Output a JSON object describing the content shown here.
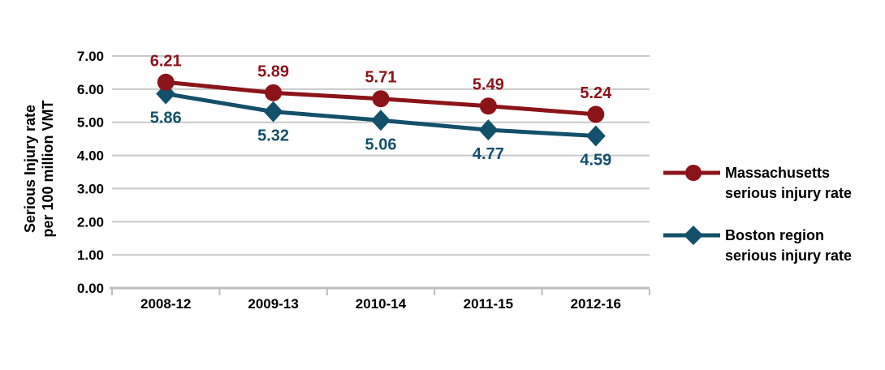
{
  "chart_data": {
    "type": "line",
    "title": "",
    "categories": [
      "2008-12",
      "2009-13",
      "2010-14",
      "2011-15",
      "2012-16"
    ],
    "series": [
      {
        "name": "Massachusetts serious injury rate",
        "label_lines": [
          "Massachusetts",
          "serious injury rate"
        ],
        "marker": "circle",
        "color": "#8B141A",
        "values": [
          6.21,
          5.89,
          5.71,
          5.49,
          5.24
        ],
        "data_label_position": "above"
      },
      {
        "name": "Boston region serious injury rate",
        "label_lines": [
          "Boston region",
          "serious injury rate"
        ],
        "marker": "diamond",
        "color": "#14506A",
        "values": [
          5.86,
          5.32,
          5.06,
          4.77,
          4.59
        ],
        "data_label_position": "below"
      }
    ],
    "xlabel": "",
    "ylabel_lines": [
      "Serious Injury rate",
      "per 100 million VMT"
    ],
    "ylim": [
      0,
      7
    ],
    "ytick_step": 1,
    "ytick_labels": [
      "0.00",
      "1.00",
      "2.00",
      "3.00",
      "4.00",
      "5.00",
      "6.00",
      "7.00"
    ],
    "grid": true,
    "data_labels": true,
    "legend_position": "right"
  },
  "colors": {
    "gridline": "#C9C9C9",
    "axis": "#BDBDBD",
    "text": "#000000",
    "background": "#FFFFFF"
  }
}
